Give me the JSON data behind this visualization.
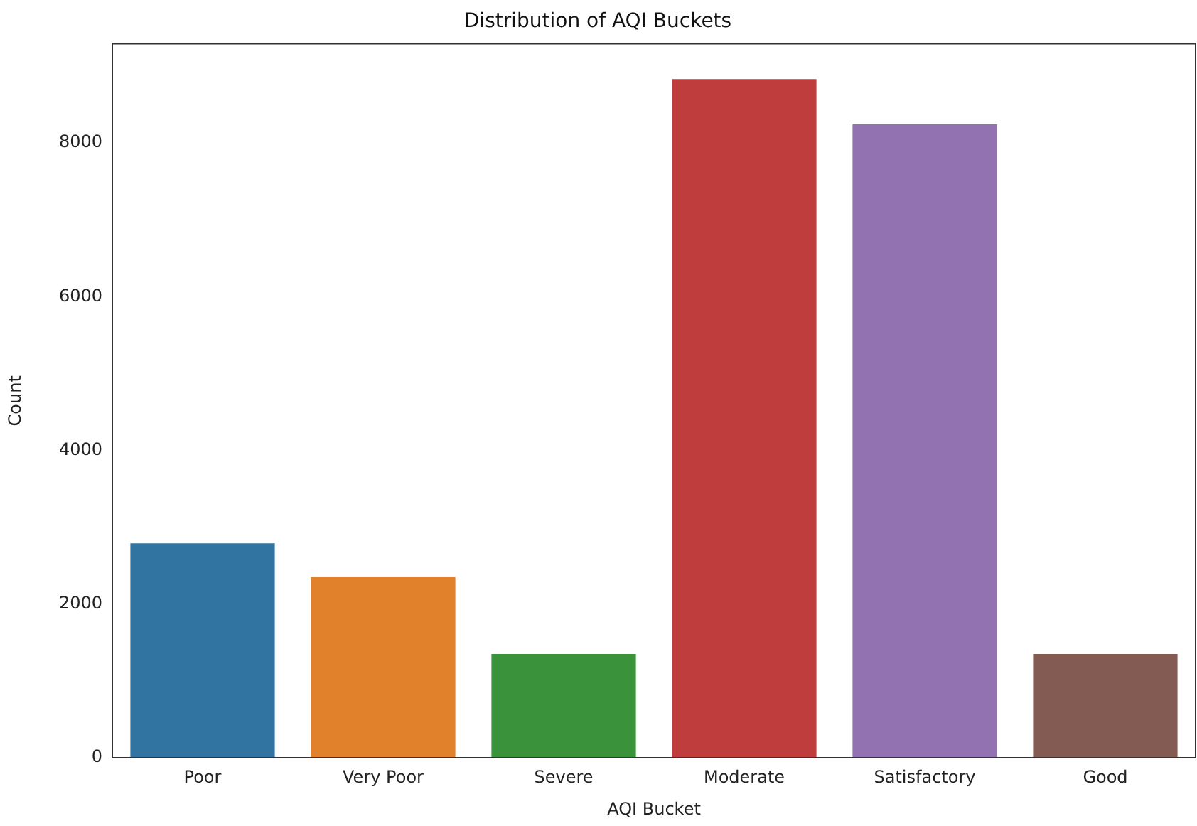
{
  "chart_data": {
    "type": "bar",
    "title": "Distribution of AQI Buckets",
    "xlabel": "AQI Bucket",
    "ylabel": "Count",
    "categories": [
      "Poor",
      "Very Poor",
      "Severe",
      "Moderate",
      "Satisfactory",
      "Good"
    ],
    "values": [
      2790,
      2350,
      1350,
      8830,
      8240,
      1350
    ],
    "colors": [
      "#3274a1",
      "#e1812c",
      "#3a923a",
      "#c03d3e",
      "#9372b2",
      "#845b53"
    ],
    "ylim": [
      0,
      9290
    ],
    "yticks": [
      0,
      2000,
      4000,
      6000,
      8000
    ],
    "grid": false,
    "legend": false
  }
}
